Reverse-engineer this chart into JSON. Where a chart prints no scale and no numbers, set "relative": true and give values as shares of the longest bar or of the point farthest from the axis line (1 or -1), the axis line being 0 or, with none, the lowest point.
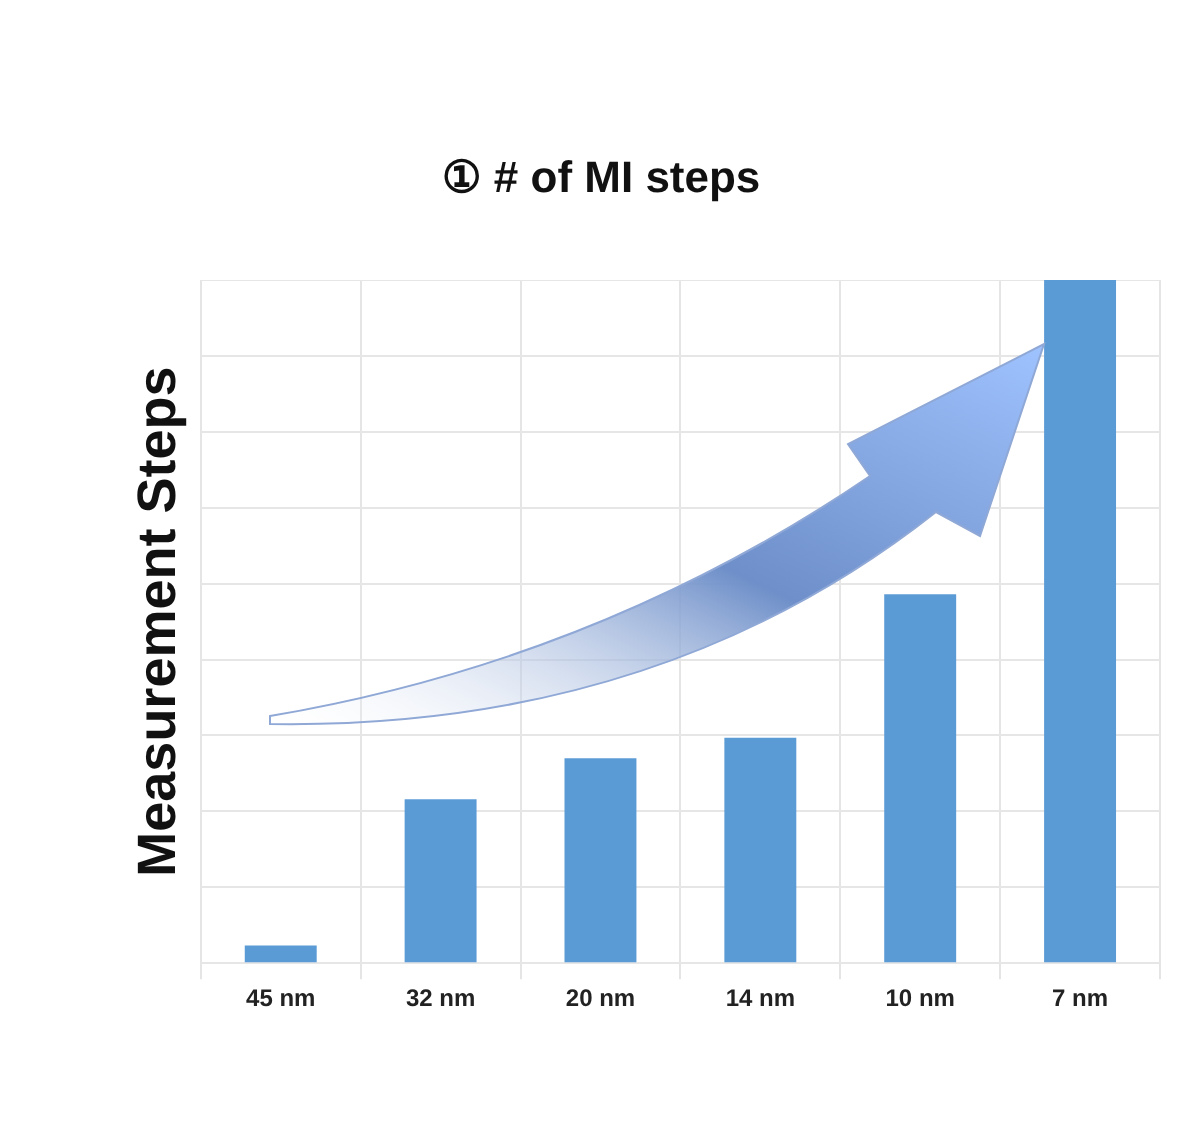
{
  "chart_data": {
    "type": "bar",
    "title": "① # of MI steps",
    "ylabel": "Measurement Steps",
    "categories": [
      "45 nm",
      "32 nm",
      "20 nm",
      "14 nm",
      "10 nm",
      "7 nm"
    ],
    "values": [
      0.026,
      0.24,
      0.3,
      0.33,
      0.54,
      1
    ],
    "color": "#5b9bd5",
    "relative": true,
    "grid": true
  }
}
